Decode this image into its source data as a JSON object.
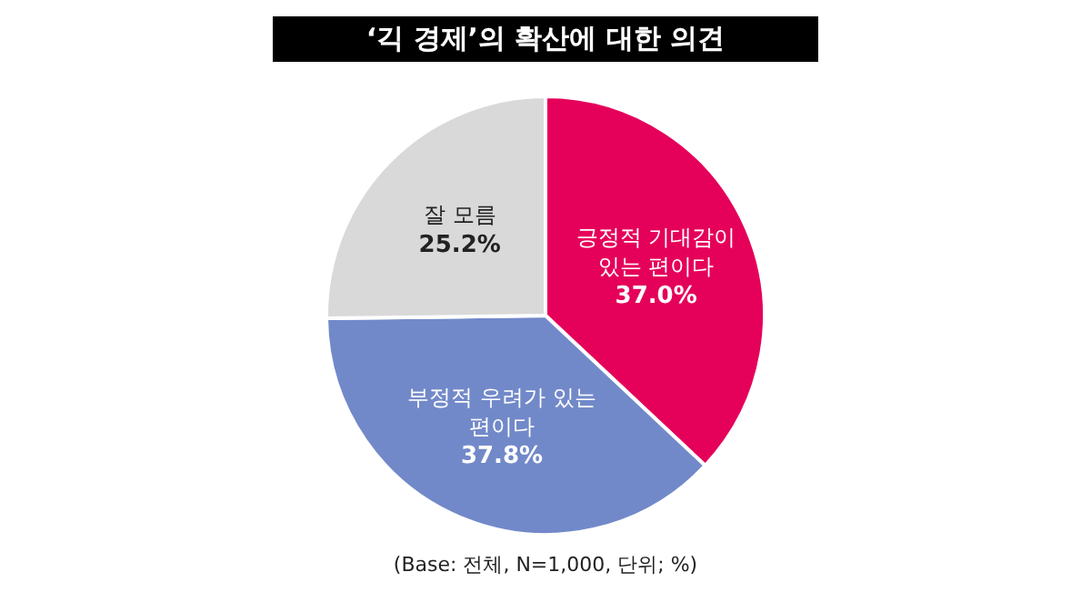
{
  "chart_data": {
    "type": "pie",
    "title": "‘긱 경제’의 확산에 대한 의견",
    "categories": [
      "긍정적 기대감이 있는 편이다",
      "부정적 우려가 있는 편이다",
      "잘 모름"
    ],
    "values": [
      37.0,
      37.8,
      25.2
    ],
    "value_labels": [
      "37.0%",
      "37.8%",
      "25.2%"
    ],
    "colors": [
      "#e5005a",
      "#7289c9",
      "#d9d9d9"
    ],
    "legend": false,
    "annotations": [
      "(Base: 전체, N=1,000, 단위; %)"
    ]
  }
}
